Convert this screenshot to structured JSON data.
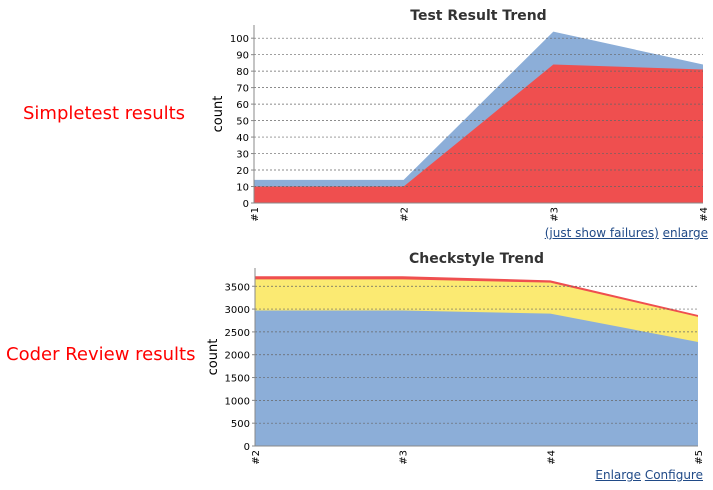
{
  "labels": {
    "top": "Simpletest results",
    "bottom": "Coder Review results"
  },
  "top_links": {
    "failures": "(just show failures)",
    "enlarge": "enlarge"
  },
  "bottom_links": {
    "enlarge": "Enlarge",
    "configure": "Configure"
  },
  "colors": {
    "red": "#ef4444",
    "blue": "#8caed8",
    "yellow": "#fbea72",
    "label": "#ff0000",
    "link": "#204a87"
  },
  "chart_data": [
    {
      "type": "area",
      "title": "Test Result Trend",
      "ylabel": "count",
      "categories": [
        "#1",
        "#2",
        "#3",
        "#4"
      ],
      "ylim": [
        0,
        108
      ],
      "yticks": [
        0,
        10,
        20,
        30,
        40,
        50,
        60,
        70,
        80,
        90,
        100
      ],
      "grid": true,
      "stacked_tops": [
        {
          "color": "#8caed8",
          "values": [
            14,
            14,
            104,
            84
          ]
        },
        {
          "color": "#ef4f4f",
          "values": [
            10,
            10,
            84,
            81
          ]
        }
      ]
    },
    {
      "type": "area",
      "title": "Checkstyle Trend",
      "ylabel": "count",
      "categories": [
        "#2",
        "#3",
        "#4",
        "#5"
      ],
      "ylim": [
        0,
        3900
      ],
      "yticks": [
        0,
        500,
        1000,
        1500,
        2000,
        2500,
        3000,
        3500
      ],
      "grid": true,
      "stacked_tops": [
        {
          "color": "#ef4f4f",
          "values": [
            3720,
            3720,
            3630,
            2870
          ]
        },
        {
          "color": "#fbea72",
          "values": [
            3650,
            3650,
            3580,
            2830
          ]
        },
        {
          "color": "#8caed8",
          "values": [
            2970,
            2970,
            2900,
            2280
          ]
        }
      ]
    }
  ]
}
